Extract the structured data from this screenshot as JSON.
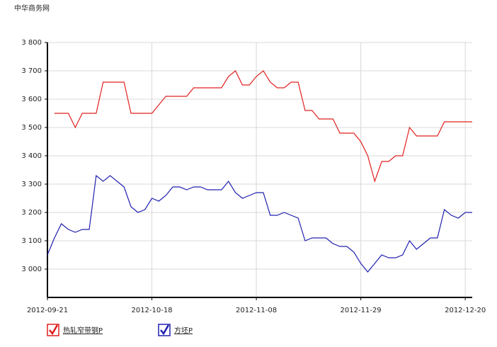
{
  "chart_data": {
    "type": "line",
    "watermark": "中华商务网",
    "categories": [
      "2012-09-21",
      null,
      null,
      null,
      null,
      null,
      null,
      null,
      null,
      null,
      null,
      null,
      null,
      null,
      null,
      "2012-10-18",
      null,
      null,
      null,
      null,
      null,
      null,
      null,
      null,
      null,
      null,
      null,
      null,
      null,
      null,
      "2012-11-08",
      null,
      null,
      null,
      null,
      null,
      null,
      null,
      null,
      null,
      null,
      null,
      null,
      null,
      null,
      "2012-11-29",
      null,
      null,
      null,
      null,
      null,
      null,
      null,
      null,
      null,
      null,
      null,
      null,
      null,
      null,
      "2012-12-20",
      null
    ],
    "series": [
      {
        "name": "热轧窄带钢P",
        "color": "#e02020",
        "values": [
          null,
          3550,
          3550,
          3550,
          3500,
          3550,
          3550,
          3550,
          3660,
          3660,
          3660,
          3660,
          3550,
          3550,
          3550,
          3550,
          3580,
          3610,
          3610,
          3610,
          3610,
          3640,
          3640,
          3640,
          3640,
          3640,
          3680,
          3700,
          3650,
          3650,
          3680,
          3700,
          3660,
          3640,
          3640,
          3660,
          3660,
          3560,
          3560,
          3530,
          3530,
          3530,
          3480,
          3480,
          3480,
          3450,
          3400,
          3310,
          3380,
          3380,
          3400,
          3400,
          3500,
          3470,
          3470,
          3470,
          3470,
          3520,
          3520,
          3520,
          3520,
          3520
        ]
      },
      {
        "name": "方坯P",
        "color": "#2020b0",
        "values": [
          3050,
          3110,
          3160,
          3140,
          3130,
          3140,
          3140,
          3330,
          3310,
          3330,
          3310,
          3290,
          3220,
          3200,
          3210,
          3250,
          3240,
          3260,
          3290,
          3290,
          3280,
          3290,
          3290,
          3280,
          3280,
          3280,
          3310,
          3270,
          3250,
          3260,
          3270,
          3270,
          3190,
          3190,
          3200,
          3190,
          3180,
          3100,
          3110,
          3110,
          3110,
          3090,
          3080,
          3080,
          3060,
          3020,
          2990,
          3020,
          3050,
          3040,
          3040,
          3050,
          3100,
          3070,
          3090,
          3110,
          3110,
          3210,
          3190,
          3180,
          3200,
          3200
        ]
      }
    ],
    "ylim": [
      2900,
      3800
    ],
    "yticks": [
      {
        "value": 3000,
        "label": "3 000"
      },
      {
        "value": 3100,
        "label": "3 100"
      },
      {
        "value": 3200,
        "label": "3 200"
      },
      {
        "value": 3300,
        "label": "3 300"
      },
      {
        "value": 3400,
        "label": "3 400"
      },
      {
        "value": 3500,
        "label": "3 500"
      },
      {
        "value": 3600,
        "label": "3 600"
      },
      {
        "value": 3700,
        "label": "3 700"
      },
      {
        "value": 3800,
        "label": "3 800"
      }
    ],
    "grid": true
  }
}
